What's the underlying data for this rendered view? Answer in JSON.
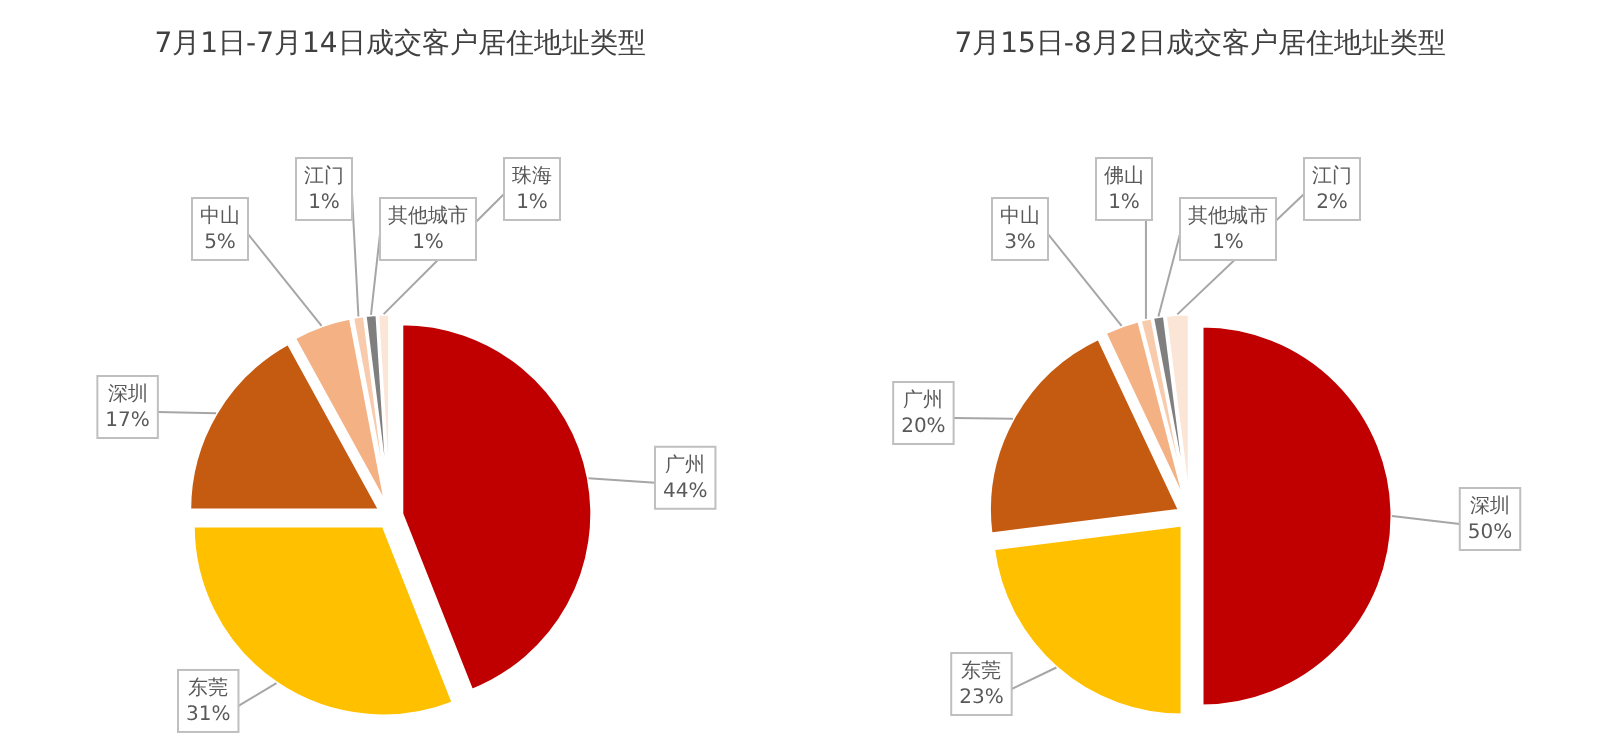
{
  "chart_data": [
    {
      "type": "pie",
      "title": "7月1日-7月14日成交客户居住地址类型",
      "categories": [
        "广州",
        "东莞",
        "深圳",
        "中山",
        "江门",
        "其他城市",
        "珠海"
      ],
      "values": [
        44,
        31,
        17,
        5,
        1,
        1,
        1
      ],
      "value_labels": [
        "44%",
        "31%",
        "17%",
        "5%",
        "1%",
        "1%",
        "1%"
      ],
      "colors": [
        "#c00000",
        "#ffc000",
        "#c55a11",
        "#f4b183",
        "#f8cbad",
        "#7f7f7f",
        "#fbe5d6"
      ]
    },
    {
      "type": "pie",
      "title": "7月15日-8月2日成交客户居住地址类型",
      "categories": [
        "深圳",
        "东莞",
        "广州",
        "中山",
        "佛山",
        "其他城市",
        "江门"
      ],
      "values": [
        50,
        23,
        20,
        3,
        1,
        1,
        2
      ],
      "value_labels": [
        "50%",
        "23%",
        "20%",
        "3%",
        "1%",
        "1%",
        "2%"
      ],
      "colors": [
        "#c00000",
        "#ffc000",
        "#c55a11",
        "#f4b183",
        "#f8cbad",
        "#7f7f7f",
        "#fbe5d6"
      ]
    }
  ]
}
